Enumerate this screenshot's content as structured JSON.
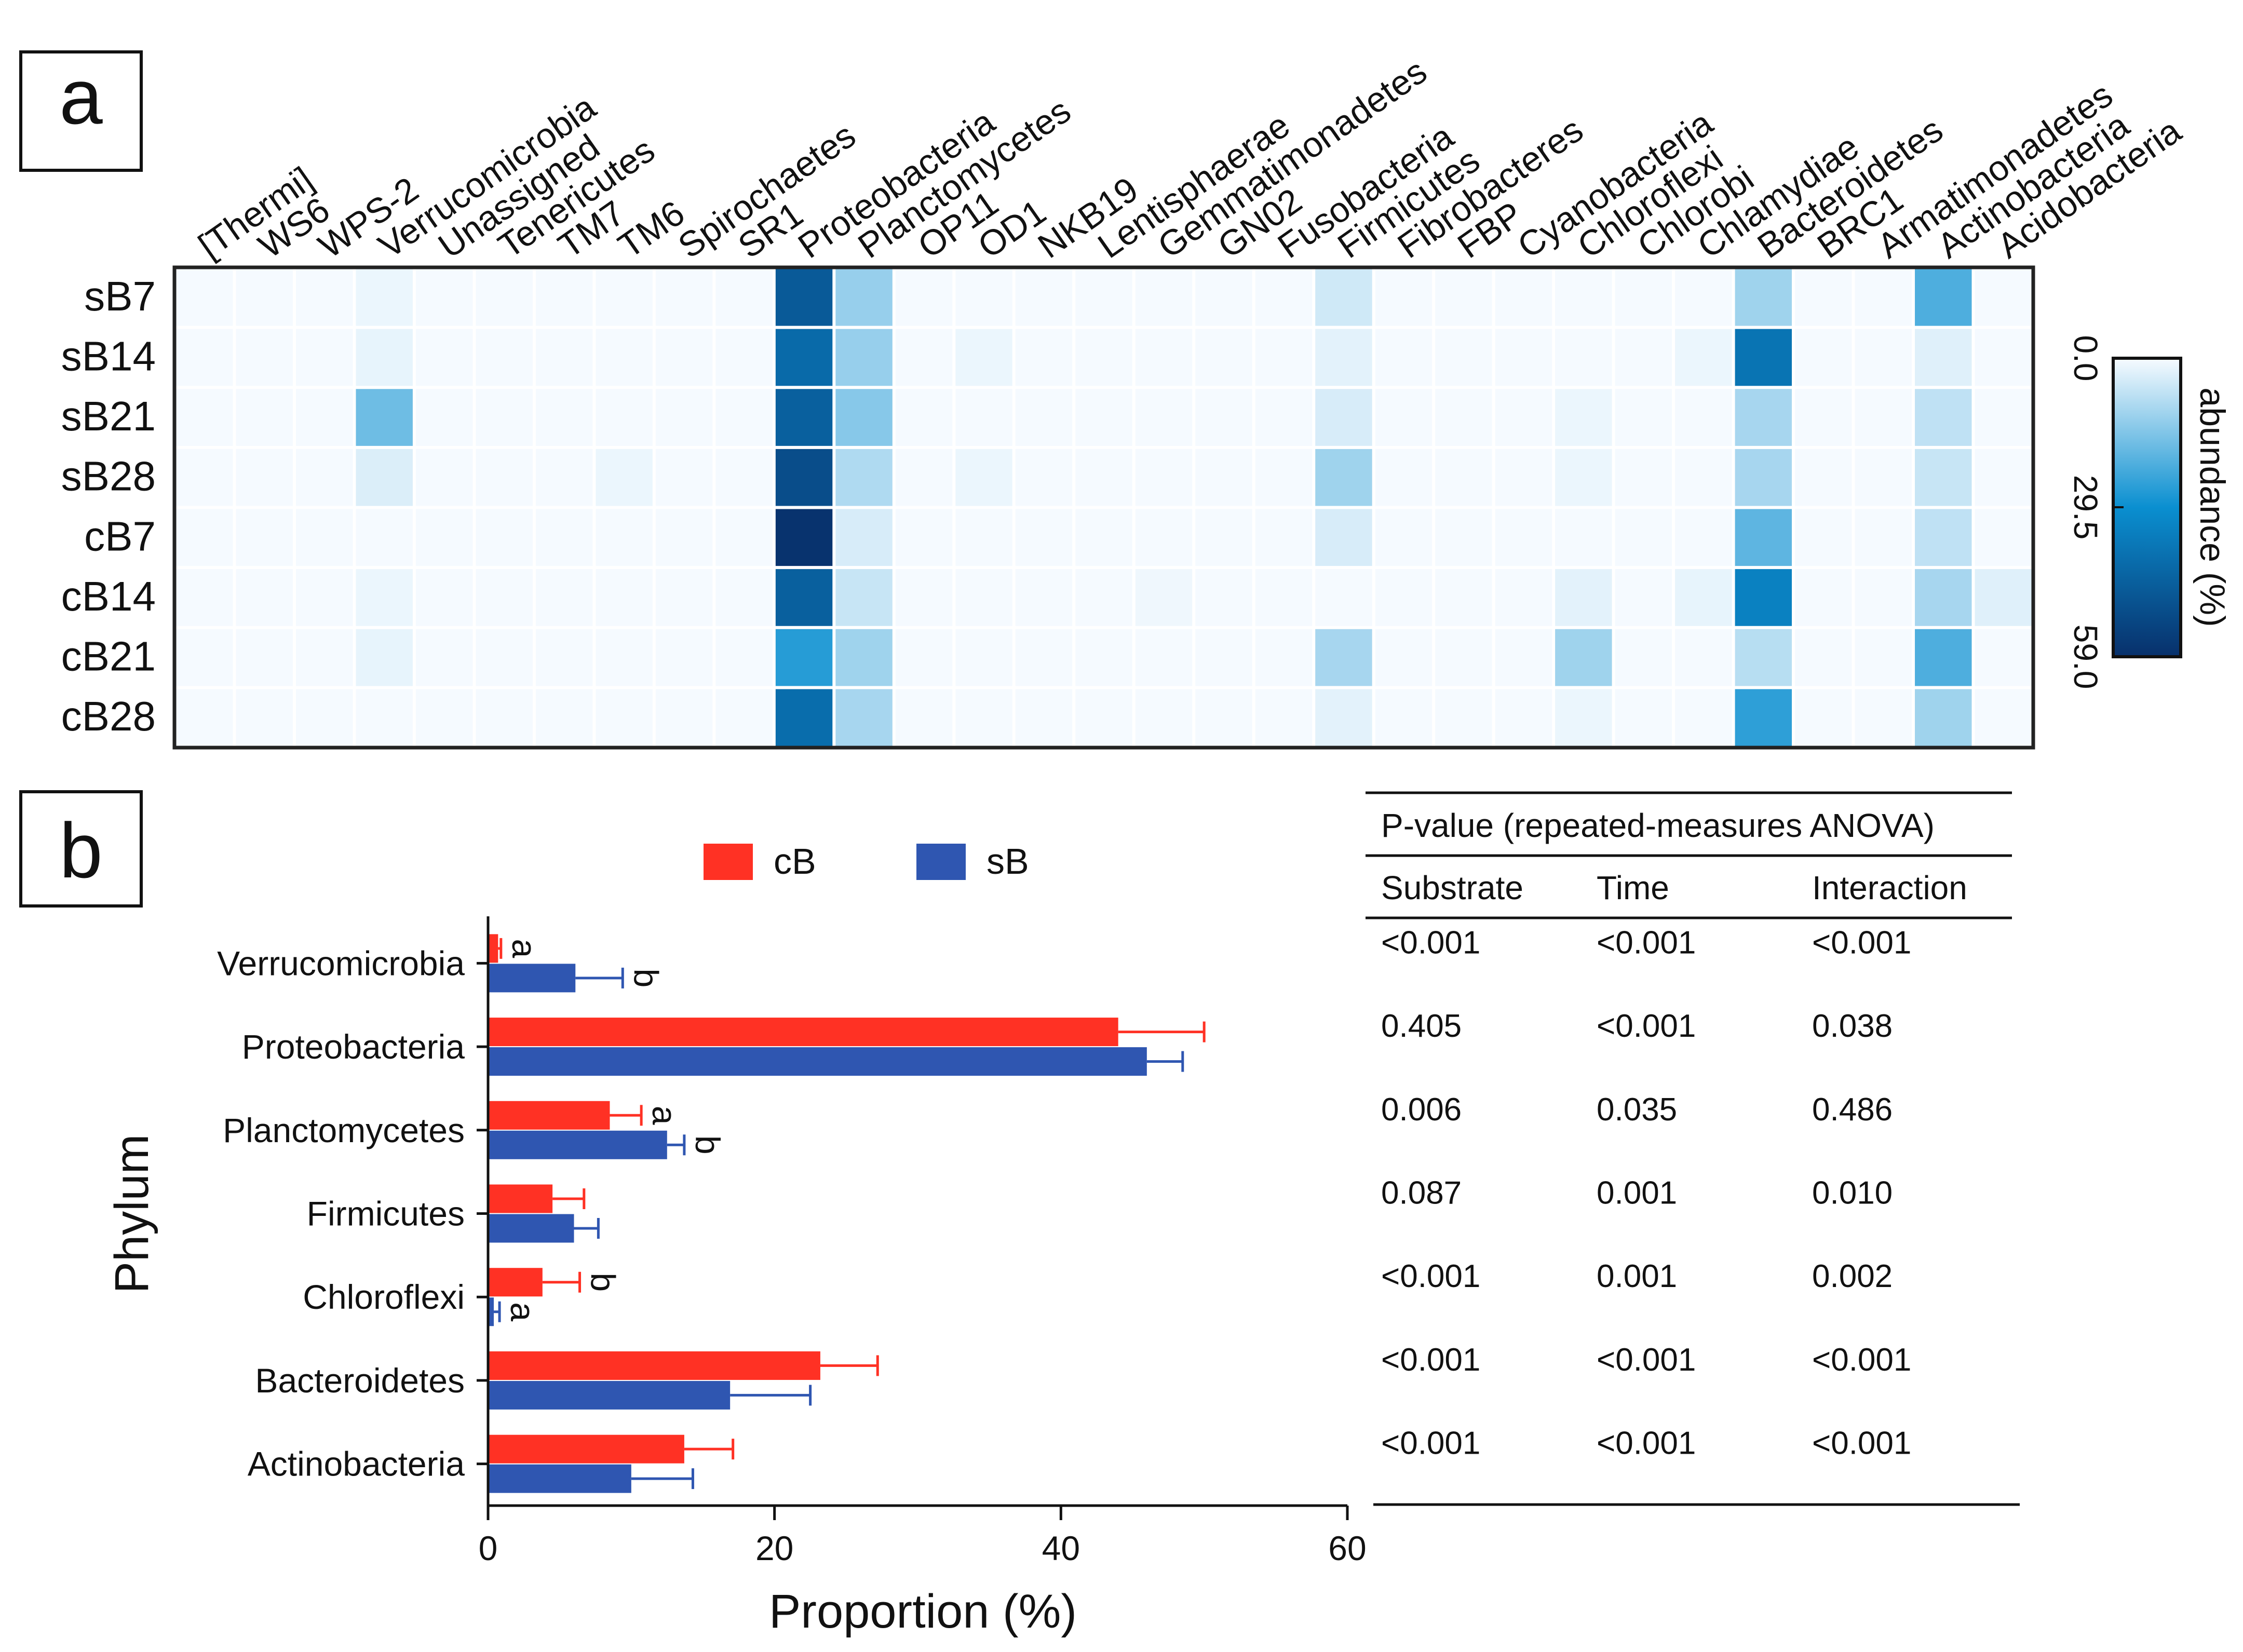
{
  "panel_a": {
    "label": "a",
    "colorbar": {
      "title": "abundance (%)",
      "tick_labels": [
        "0.0",
        "29.5",
        "59.0"
      ],
      "range": [
        0,
        59
      ],
      "colors": {
        "low": "#f7fbff",
        "mid": "#0a8fd0",
        "high": "#08306b"
      }
    }
  },
  "panel_b": {
    "label": "b",
    "legend": {
      "cB": "cB",
      "sB": "sB"
    },
    "colors": {
      "cB": "#ff3124",
      "sB": "#2f56b1"
    },
    "table": {
      "title": "P-value (repeated-measures ANOVA)",
      "headers": [
        "Substrate",
        "Time",
        "Interaction"
      ],
      "rows": [
        [
          "<0.001",
          "<0.001",
          "<0.001"
        ],
        [
          "0.405",
          "<0.001",
          "0.038"
        ],
        [
          "0.006",
          "0.035",
          "0.486"
        ],
        [
          "0.087",
          "0.001",
          "0.010"
        ],
        [
          "<0.001",
          "0.001",
          "0.002"
        ],
        [
          "<0.001",
          "<0.001",
          "<0.001"
        ],
        [
          "<0.001",
          "<0.001",
          "<0.001"
        ]
      ]
    }
  },
  "chart_data": [
    {
      "type": "heatmap",
      "title": "",
      "x_labels": [
        "[Thermi]",
        "WS6",
        "WPS-2",
        "Verrucomicrobia",
        "Unassigned",
        "Tenericutes",
        "TM7",
        "TM6",
        "Spirochaetes",
        "SR1",
        "Proteobacteria",
        "Planctomycetes",
        "OP11",
        "OD1",
        "NKB19",
        "Lentisphaerae",
        "Gemmatimonadetes",
        "GN02",
        "Fusobacteria",
        "Firmicutes",
        "Fibrobacteres",
        "FBP",
        "Cyanobacteria",
        "Chloroflexi",
        "Chlorobi",
        "Chlamydiae",
        "Bacteroidetes",
        "BRC1",
        "Armatimonadetes",
        "Actinobacteria",
        "Acidobacteria"
      ],
      "y_labels": [
        "sB7",
        "sB14",
        "sB21",
        "sB28",
        "cB7",
        "cB14",
        "cB21",
        "cB28"
      ],
      "zlim": [
        0,
        59
      ],
      "values": [
        [
          0.3,
          0.3,
          0.3,
          1.5,
          0.3,
          0.3,
          0.3,
          0.3,
          0.3,
          0.3,
          46,
          12,
          0.3,
          0.3,
          0.3,
          0.3,
          0.3,
          0.3,
          0.3,
          5,
          0.3,
          0.3,
          0.3,
          0.3,
          0.3,
          0.3,
          11,
          0.3,
          0.3,
          21,
          0.3
        ],
        [
          0.3,
          0.3,
          0.3,
          2,
          0.3,
          0.3,
          0.3,
          0.3,
          0.3,
          0.3,
          41,
          12,
          0.3,
          1.5,
          0.3,
          0.3,
          0.3,
          0.3,
          0.3,
          2.5,
          0.3,
          0.3,
          0.3,
          0.3,
          0.3,
          1.5,
          38,
          0.3,
          0.3,
          3,
          0.3
        ],
        [
          0.3,
          0.3,
          0.3,
          17,
          0.3,
          0.3,
          0.3,
          0.3,
          0.3,
          0.3,
          44,
          14,
          0.3,
          0.3,
          0.3,
          0.3,
          0.3,
          0.3,
          0.3,
          4,
          0.3,
          0.3,
          0.3,
          1.5,
          0.3,
          0.3,
          10,
          0.3,
          0.3,
          7,
          0.3
        ],
        [
          0.3,
          0.3,
          0.3,
          3.5,
          0.3,
          0.3,
          0.3,
          1.5,
          0.3,
          0.3,
          50,
          9,
          0.3,
          1.5,
          0.3,
          0.3,
          0.3,
          0.3,
          0.3,
          11,
          0.3,
          0.3,
          0.3,
          1.5,
          0.3,
          0.3,
          10,
          0.3,
          0.3,
          6,
          0.3
        ],
        [
          0.3,
          0.3,
          0.3,
          0.3,
          0.3,
          0.3,
          0.3,
          0.3,
          0.3,
          0.3,
          58,
          4,
          0.3,
          0.3,
          0.3,
          0.3,
          0.3,
          0.3,
          0.3,
          4,
          0.3,
          0.3,
          0.3,
          0.3,
          0.3,
          0.3,
          19,
          0.3,
          0.3,
          7,
          0.3
        ],
        [
          0.3,
          0.3,
          0.3,
          1.5,
          0.3,
          0.3,
          0.3,
          0.3,
          0.3,
          0.3,
          44,
          6,
          0.3,
          0.3,
          0.3,
          0.3,
          1,
          0.3,
          0.3,
          0.3,
          0.3,
          0.3,
          0.3,
          2.5,
          0.3,
          2,
          34,
          0.3,
          0.3,
          10,
          3
        ],
        [
          0.3,
          0.3,
          0.3,
          2,
          0.3,
          0.3,
          0.3,
          0.3,
          0.3,
          0.3,
          26,
          11,
          0.3,
          0.3,
          0.3,
          0.3,
          0.3,
          0.3,
          0.3,
          10,
          0.3,
          0.3,
          0.3,
          11,
          0.3,
          0.3,
          8,
          0.3,
          0.3,
          21,
          0.3
        ],
        [
          0.3,
          0.3,
          0.3,
          0.3,
          0.3,
          0.3,
          0.3,
          0.3,
          0.3,
          0.3,
          40,
          10,
          0.3,
          0.3,
          0.3,
          0.3,
          0.3,
          0.3,
          0.3,
          2.5,
          0.3,
          0.3,
          0.3,
          1.5,
          0.3,
          0.3,
          25,
          0.3,
          0.3,
          11,
          0.3
        ]
      ]
    },
    {
      "type": "bar",
      "orientation": "horizontal",
      "title": "",
      "xlabel": "Proportion (%)",
      "ylabel": "Phylum",
      "xlim": [
        0,
        60
      ],
      "xticks": [
        0,
        20,
        40,
        60
      ],
      "categories": [
        "Verrucomicrobia",
        "Proteobacteria",
        "Planctomycetes",
        "Firmicutes",
        "Chloroflexi",
        "Bacteroidetes",
        "Actinobacteria"
      ],
      "series": [
        {
          "name": "cB",
          "values": [
            0.7,
            44,
            8.5,
            4.5,
            3.8,
            23.2,
            13.7
          ],
          "errors": [
            0.2,
            6,
            2.2,
            2.2,
            2.6,
            4,
            3.4
          ],
          "letters": [
            "a",
            "",
            "a",
            "",
            "b",
            "",
            ""
          ]
        },
        {
          "name": "sB",
          "values": [
            6.1,
            46,
            12.5,
            6,
            0.4,
            16.9,
            10
          ],
          "errors": [
            3.3,
            2.5,
            1.2,
            1.7,
            0.4,
            5.6,
            4.3
          ],
          "letters": [
            "b",
            "",
            "b",
            "",
            "a",
            "",
            ""
          ]
        }
      ]
    }
  ]
}
